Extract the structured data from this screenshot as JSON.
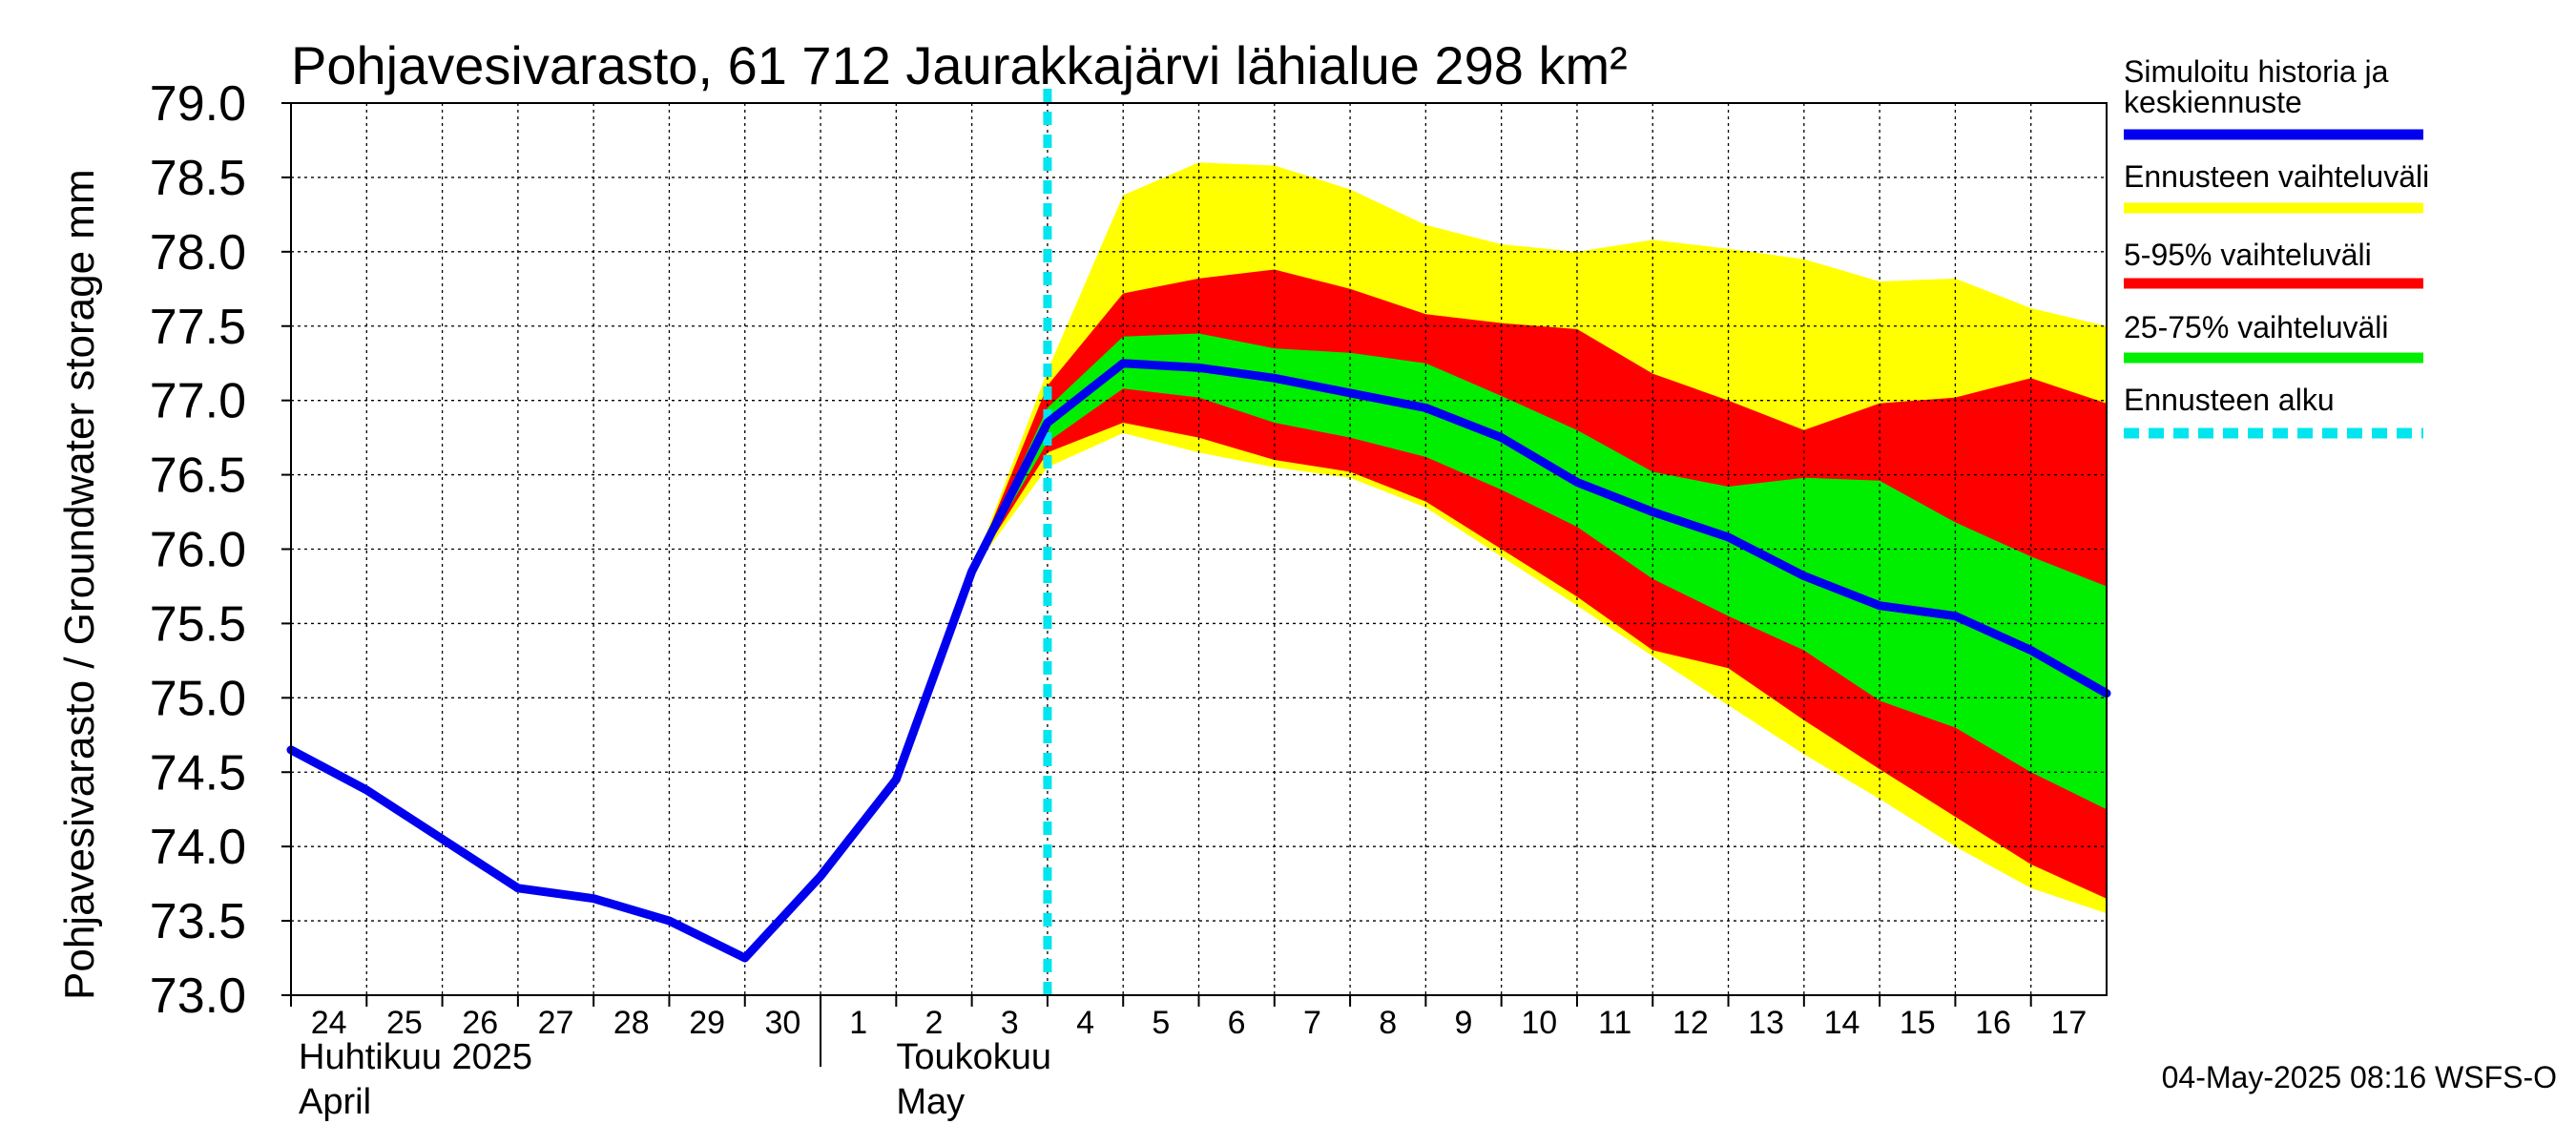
{
  "chart_data": {
    "type": "area",
    "title": "Pohjavesivarasto, 61 712 Jaurakkajärvi lähialue 298 km²",
    "ylabel": "Pohjavesivarasto / Groundwater storage   mm",
    "ylim": [
      73.0,
      79.0
    ],
    "yticks": [
      "73.0",
      "73.5",
      "74.0",
      "74.5",
      "75.0",
      "75.5",
      "76.0",
      "76.5",
      "77.0",
      "77.5",
      "78.0",
      "78.5",
      "79.0"
    ],
    "xlim": [
      0,
      24
    ],
    "xticks": [
      "24",
      "25",
      "26",
      "27",
      "28",
      "29",
      "30",
      "1",
      "2",
      "3",
      "4",
      "5",
      "6",
      "7",
      "8",
      "9",
      "10",
      "11",
      "12",
      "13",
      "14",
      "15",
      "16",
      "17"
    ],
    "month_labels": [
      {
        "fi": "Huhtikuu  2025",
        "en": "April"
      },
      {
        "fi": "Toukokuu",
        "en": "May"
      }
    ],
    "forecast_start_x": 10.0,
    "series": [
      {
        "name": "Simuloitu historia ja keskiennuste",
        "color": "#0000ee",
        "x": [
          0,
          1,
          2,
          3,
          4,
          5,
          6,
          7,
          8,
          9,
          10,
          11,
          12,
          13,
          14,
          15,
          16,
          17,
          18,
          19,
          20,
          21,
          22,
          23,
          24
        ],
        "y": [
          74.65,
          74.38,
          74.05,
          73.72,
          73.65,
          73.5,
          73.25,
          73.8,
          74.45,
          75.85,
          76.85,
          77.25,
          77.22,
          77.15,
          77.05,
          76.95,
          76.75,
          76.45,
          76.25,
          76.08,
          75.82,
          75.62,
          75.55,
          75.32,
          75.03
        ]
      },
      {
        "name": "Ennusteen vaihteluväli",
        "color": "#ffff00",
        "x": [
          9,
          10,
          11,
          12,
          13,
          14,
          15,
          16,
          17,
          18,
          19,
          20,
          21,
          22,
          23,
          24
        ],
        "upper": [
          75.85,
          77.2,
          78.38,
          78.6,
          78.58,
          78.42,
          78.18,
          78.05,
          78.0,
          78.08,
          78.02,
          77.95,
          77.8,
          77.82,
          77.62,
          77.5
        ],
        "lower": [
          75.85,
          76.55,
          76.78,
          76.65,
          76.55,
          76.48,
          76.28,
          75.95,
          75.62,
          75.28,
          74.95,
          74.62,
          74.32,
          74.0,
          73.72,
          73.55
        ]
      },
      {
        "name": "5-95% vaihteluväli",
        "color": "#ff0000",
        "x": [
          9,
          10,
          11,
          12,
          13,
          14,
          15,
          16,
          17,
          18,
          19,
          20,
          21,
          22,
          23,
          24
        ],
        "upper": [
          75.85,
          77.1,
          77.72,
          77.82,
          77.88,
          77.75,
          77.58,
          77.52,
          77.48,
          77.18,
          77.0,
          76.8,
          76.98,
          77.02,
          77.15,
          76.98
        ],
        "lower": [
          75.85,
          76.65,
          76.85,
          76.75,
          76.6,
          76.52,
          76.32,
          76.0,
          75.68,
          75.32,
          75.2,
          74.85,
          74.52,
          74.2,
          73.88,
          73.65
        ]
      },
      {
        "name": "25-75% vaihteluväli",
        "color": "#00ee00",
        "x": [
          9,
          10,
          11,
          12,
          13,
          14,
          15,
          16,
          17,
          18,
          19,
          20,
          21,
          22,
          23,
          24
        ],
        "upper": [
          75.85,
          76.95,
          77.43,
          77.45,
          77.35,
          77.32,
          77.25,
          77.03,
          76.8,
          76.52,
          76.42,
          76.48,
          76.46,
          76.18,
          75.95,
          75.75
        ],
        "lower": [
          75.85,
          76.72,
          77.08,
          77.02,
          76.85,
          76.75,
          76.62,
          76.4,
          76.15,
          75.8,
          75.55,
          75.32,
          74.98,
          74.8,
          74.5,
          74.25
        ]
      },
      {
        "name": "Ennusteen alku",
        "color": "#00e5ee",
        "style": "dashed"
      }
    ],
    "legend": [
      {
        "label": "Simuloitu historia ja keskiennuste",
        "color": "#0000ee",
        "style": "solid"
      },
      {
        "label": "Ennusteen vaihteluväli",
        "color": "#ffff00",
        "style": "solid"
      },
      {
        "label": "5-95% vaihteluväli",
        "color": "#ff0000",
        "style": "solid"
      },
      {
        "label": "25-75% vaihteluväli",
        "color": "#00ee00",
        "style": "solid"
      },
      {
        "label": "Ennusteen alku",
        "color": "#00e5ee",
        "style": "dashed"
      }
    ],
    "legend_position": "right",
    "grid": true,
    "footer": "04-May-2025 08:16 WSFS-O"
  }
}
